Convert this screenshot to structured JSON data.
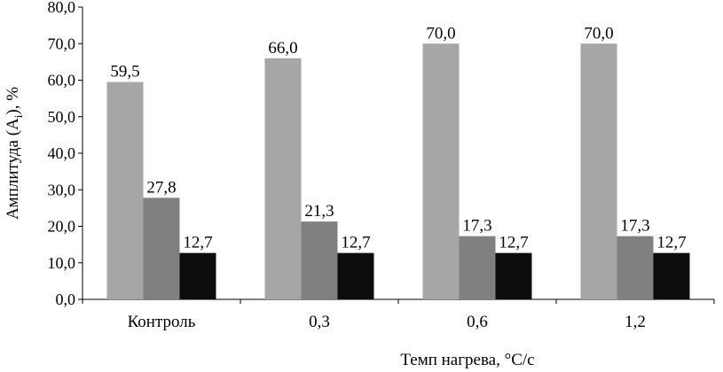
{
  "chart_data": {
    "type": "bar",
    "title": "",
    "xlabel": "Темп нагрева, °С/с",
    "ylabel": "Амплитуда (Ai), %",
    "ylabel_main": "Амплитуда (A",
    "ylabel_sub": "i",
    "ylabel_tail": "), %",
    "ylim": [
      0,
      80
    ],
    "ystep": 10,
    "ytick_labels": [
      "0,0",
      "10,0",
      "20,0",
      "30,0",
      "40,0",
      "50,0",
      "60,0",
      "70,0",
      "80,0"
    ],
    "grid": false,
    "legend": "none",
    "categories": [
      "Контроль",
      "0,3",
      "0,6",
      "1,2"
    ],
    "series": [
      {
        "values": [
          59.5,
          66.0,
          70.0,
          70.0
        ],
        "labels": [
          "59,5",
          "66,0",
          "70,0",
          "70,0"
        ],
        "color": "#a6a6a6"
      },
      {
        "values": [
          27.8,
          21.3,
          17.3,
          17.3
        ],
        "labels": [
          "27,8",
          "21,3",
          "17,3",
          "17,3"
        ],
        "color": "#808080"
      },
      {
        "values": [
          12.7,
          12.7,
          12.7,
          12.7
        ],
        "labels": [
          "12,7",
          "12,7",
          "12,7",
          "12,7"
        ],
        "color": "#0d0d0d"
      }
    ]
  }
}
